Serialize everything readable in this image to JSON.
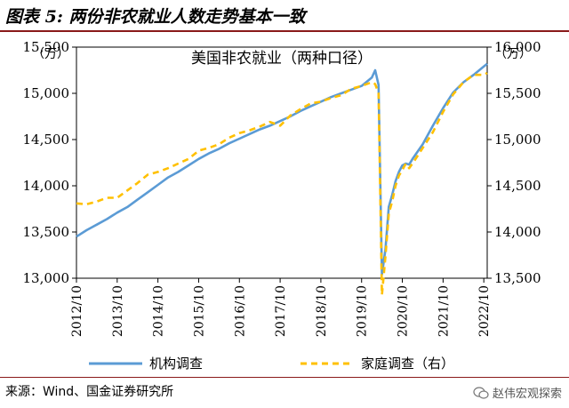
{
  "figure_title": "图表 5:   两份非农就业人数走势基本一致",
  "source": "来源：Wind、国金证券研究所",
  "watermark": "赵伟宏观探索",
  "chart_data": {
    "type": "line",
    "title": "美国非农就业（两种口径）",
    "y_left_unit": "（万）",
    "y_right_unit": "（万）",
    "y_left": {
      "ylim": [
        13000,
        15500
      ],
      "ticks": [
        "13,000",
        "13,500",
        "14,000",
        "14,500",
        "15,000",
        "15,500"
      ],
      "tick_values": [
        13000,
        13500,
        14000,
        14500,
        15000,
        15500
      ]
    },
    "y_right": {
      "ylim": [
        13500,
        16000
      ],
      "ticks": [
        "13,500",
        "14,000",
        "14,500",
        "15,000",
        "15,500",
        "16,000"
      ],
      "tick_values": [
        13500,
        14000,
        14500,
        15000,
        15500,
        16000
      ]
    },
    "x_range": [
      "2012-10",
      "2022-11"
    ],
    "x_ticks": [
      "2012/10",
      "2013/10",
      "2014/10",
      "2015/10",
      "2016/10",
      "2017/10",
      "2018/10",
      "2019/10",
      "2020/10",
      "2021/10",
      "2022/10"
    ],
    "grid": false,
    "legend_position": "bottom",
    "series": [
      {
        "name": "机构调查",
        "axis": "left",
        "color": "#5b9bd5",
        "style": "solid",
        "points": [
          [
            "2012-10",
            13450
          ],
          [
            "2013-01",
            13520
          ],
          [
            "2013-04",
            13580
          ],
          [
            "2013-07",
            13640
          ],
          [
            "2013-10",
            13710
          ],
          [
            "2014-01",
            13770
          ],
          [
            "2014-04",
            13850
          ],
          [
            "2014-07",
            13930
          ],
          [
            "2014-10",
            14010
          ],
          [
            "2015-01",
            14090
          ],
          [
            "2015-04",
            14150
          ],
          [
            "2015-07",
            14220
          ],
          [
            "2015-10",
            14290
          ],
          [
            "2016-01",
            14350
          ],
          [
            "2016-04",
            14400
          ],
          [
            "2016-07",
            14460
          ],
          [
            "2016-10",
            14510
          ],
          [
            "2017-01",
            14560
          ],
          [
            "2017-04",
            14610
          ],
          [
            "2017-07",
            14650
          ],
          [
            "2017-10",
            14700
          ],
          [
            "2018-01",
            14750
          ],
          [
            "2018-04",
            14810
          ],
          [
            "2018-07",
            14860
          ],
          [
            "2018-10",
            14910
          ],
          [
            "2019-01",
            14960
          ],
          [
            "2019-04",
            15000
          ],
          [
            "2019-07",
            15040
          ],
          [
            "2019-10",
            15080
          ],
          [
            "2020-01",
            15170
          ],
          [
            "2020-02",
            15250
          ],
          [
            "2020-03",
            15090
          ],
          [
            "2020-04",
            13040
          ],
          [
            "2020-05",
            13310
          ],
          [
            "2020-06",
            13770
          ],
          [
            "2020-07",
            13900
          ],
          [
            "2020-08",
            14050
          ],
          [
            "2020-09",
            14150
          ],
          [
            "2020-10",
            14220
          ],
          [
            "2020-11",
            14240
          ],
          [
            "2020-12",
            14230
          ],
          [
            "2021-01",
            14290
          ],
          [
            "2021-04",
            14450
          ],
          [
            "2021-07",
            14650
          ],
          [
            "2021-10",
            14840
          ],
          [
            "2022-01",
            15010
          ],
          [
            "2022-04",
            15120
          ],
          [
            "2022-07",
            15200
          ],
          [
            "2022-10",
            15290
          ],
          [
            "2022-11",
            15320
          ]
        ]
      },
      {
        "name": "家庭调查（右）",
        "axis": "right",
        "color": "#ffc000",
        "style": "dashed",
        "points": [
          [
            "2012-10",
            14310
          ],
          [
            "2013-01",
            14300
          ],
          [
            "2013-04",
            14330
          ],
          [
            "2013-07",
            14370
          ],
          [
            "2013-10",
            14370
          ],
          [
            "2014-01",
            14450
          ],
          [
            "2014-04",
            14530
          ],
          [
            "2014-07",
            14620
          ],
          [
            "2014-10",
            14650
          ],
          [
            "2015-01",
            14690
          ],
          [
            "2015-04",
            14740
          ],
          [
            "2015-07",
            14790
          ],
          [
            "2015-10",
            14880
          ],
          [
            "2016-01",
            14910
          ],
          [
            "2016-04",
            14950
          ],
          [
            "2016-07",
            15020
          ],
          [
            "2016-10",
            15070
          ],
          [
            "2017-01",
            15100
          ],
          [
            "2017-04",
            15140
          ],
          [
            "2017-07",
            15190
          ],
          [
            "2017-10",
            15150
          ],
          [
            "2018-01",
            15260
          ],
          [
            "2018-04",
            15330
          ],
          [
            "2018-07",
            15390
          ],
          [
            "2018-10",
            15410
          ],
          [
            "2019-01",
            15450
          ],
          [
            "2019-04",
            15480
          ],
          [
            "2019-07",
            15550
          ],
          [
            "2019-10",
            15580
          ],
          [
            "2020-01",
            15620
          ],
          [
            "2020-02",
            15600
          ],
          [
            "2020-03",
            15500
          ],
          [
            "2020-04",
            13320
          ],
          [
            "2020-05",
            13730
          ],
          [
            "2020-06",
            14200
          ],
          [
            "2020-07",
            14330
          ],
          [
            "2020-08",
            14500
          ],
          [
            "2020-09",
            14610
          ],
          [
            "2020-10",
            14670
          ],
          [
            "2020-11",
            14740
          ],
          [
            "2020-12",
            14690
          ],
          [
            "2021-01",
            14740
          ],
          [
            "2021-04",
            14910
          ],
          [
            "2021-07",
            15080
          ],
          [
            "2021-10",
            15300
          ],
          [
            "2022-01",
            15490
          ],
          [
            "2022-04",
            15620
          ],
          [
            "2022-07",
            15700
          ],
          [
            "2022-10",
            15700
          ],
          [
            "2022-11",
            15720
          ]
        ]
      }
    ]
  }
}
